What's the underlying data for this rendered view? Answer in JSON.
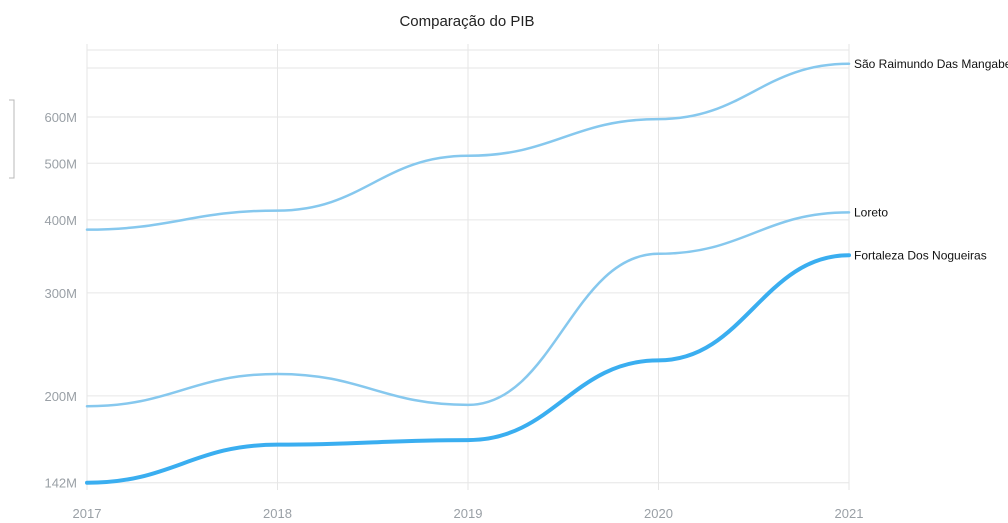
{
  "chart_data": {
    "type": "line",
    "title": "Comparação do PIB",
    "xlabel": "",
    "ylabel": "",
    "scale": "log",
    "x": [
      "2017",
      "2018",
      "2019",
      "2020",
      "2021"
    ],
    "y_ticks": [
      {
        "value": 142,
        "label": "142M"
      },
      {
        "value": 200,
        "label": "200M"
      },
      {
        "value": 300,
        "label": "300M"
      },
      {
        "value": 400,
        "label": "400M"
      },
      {
        "value": 500,
        "label": "500M"
      },
      {
        "value": 600,
        "label": "600M"
      }
    ],
    "ylim": [
      138,
      800
    ],
    "grid": true,
    "legend": "right end labels",
    "series": [
      {
        "name": "São Raimundo Das Mangabeiras",
        "values": [
          385,
          415,
          515,
          595,
          740
        ],
        "color": "#86c8ee",
        "width": 2.5
      },
      {
        "name": "Loreto",
        "values": [
          192,
          218,
          193,
          350,
          412
        ],
        "color": "#86c8ee",
        "width": 2.5
      },
      {
        "name": "Fortaleza Dos Nogueiras",
        "values": [
          142,
          165,
          168,
          230,
          348
        ],
        "color": "#3aaef0",
        "width": 4
      }
    ]
  }
}
